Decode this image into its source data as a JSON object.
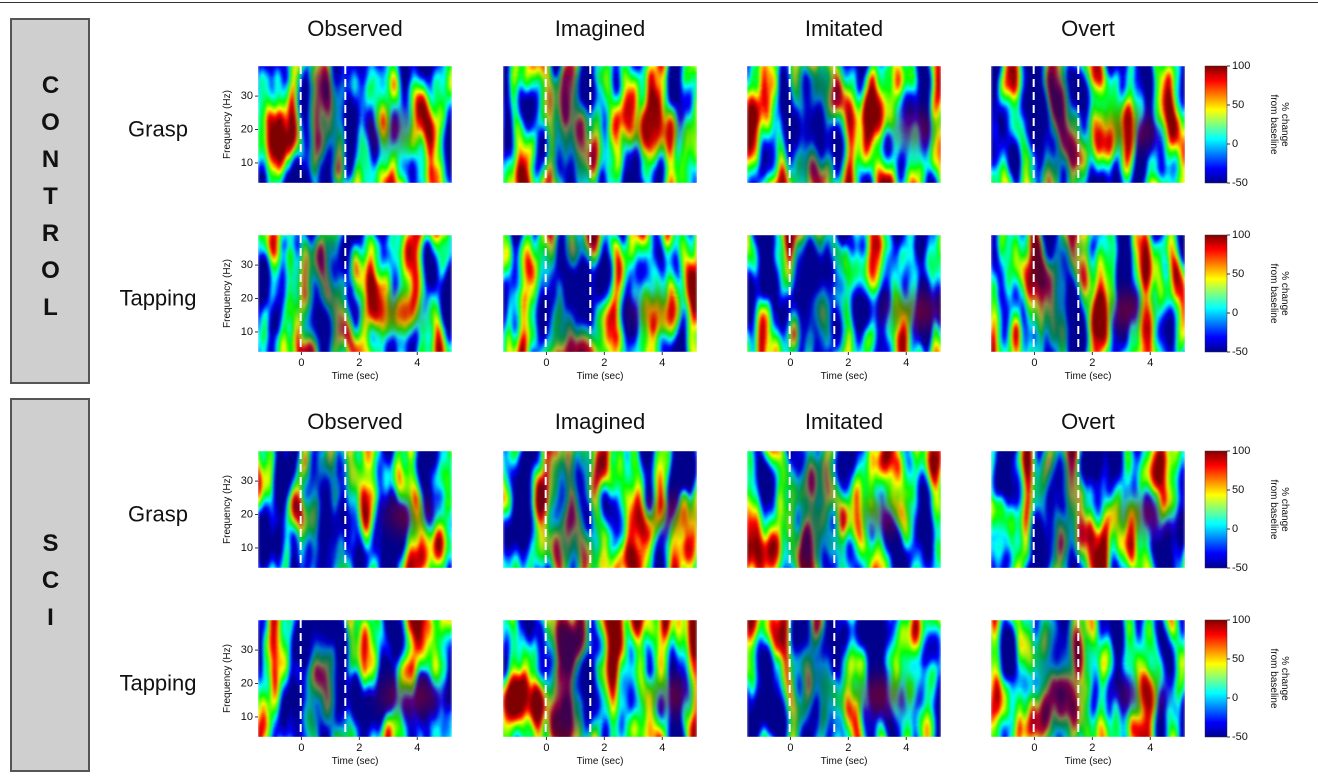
{
  "groups": [
    {
      "label": "CONTROL",
      "columns": [
        "Observed",
        "Imagined",
        "Imitated",
        "Overt"
      ],
      "rows": [
        "Grasp",
        "Tapping"
      ]
    },
    {
      "label": "SCI",
      "columns": [
        "Observed",
        "Imagined",
        "Imitated",
        "Overt"
      ],
      "rows": [
        "Grasp",
        "Tapping"
      ]
    }
  ],
  "axes": {
    "y_label": "Frequency (Hz)",
    "x_label": "Time (sec)",
    "xlim": [
      -1.5,
      5.2
    ],
    "xticks": [
      0,
      2,
      4
    ],
    "ylim": [
      4,
      39
    ],
    "yticks": [
      30,
      20,
      10
    ]
  },
  "colorbar": {
    "label_lines": [
      "% change",
      "from baseline"
    ],
    "lim": [
      -50,
      100
    ],
    "ticks": [
      100,
      50,
      0,
      -50
    ]
  }
}
